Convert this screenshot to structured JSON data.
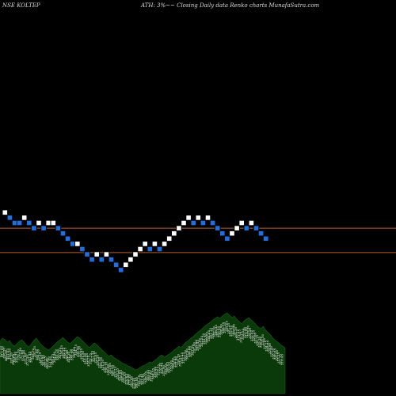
{
  "header": {
    "symbol": "NSE KOLTEP",
    "caption": "ATH: 3%~~ Closing Daily data Renko charts MunafaSutra.com"
  },
  "colors": {
    "background": "#000000",
    "up_brick": "#ffffff",
    "down_brick": "#1f6fe0",
    "level_line": "#b8612e",
    "volume_fill": "#0a3a0a"
  },
  "chart_data": {
    "type": "renko",
    "title": "",
    "xlabel": "",
    "ylabel": "",
    "grid": false,
    "ylim": [
      260,
      400
    ],
    "levels": [
      329,
      301
    ],
    "bricks": [
      {
        "close": 347,
        "dir": "up"
      },
      {
        "close": 341,
        "dir": "down"
      },
      {
        "close": 335,
        "dir": "down"
      },
      {
        "close": 335,
        "dir": "down"
      },
      {
        "close": 341,
        "dir": "up"
      },
      {
        "close": 335,
        "dir": "down"
      },
      {
        "close": 329,
        "dir": "down"
      },
      {
        "close": 335,
        "dir": "up"
      },
      {
        "close": 329,
        "dir": "down"
      },
      {
        "close": 335,
        "dir": "up"
      },
      {
        "close": 335,
        "dir": "up"
      },
      {
        "close": 329,
        "dir": "down"
      },
      {
        "close": 323,
        "dir": "down"
      },
      {
        "close": 317,
        "dir": "down"
      },
      {
        "close": 311,
        "dir": "down"
      },
      {
        "close": 311,
        "dir": "up"
      },
      {
        "close": 305,
        "dir": "down"
      },
      {
        "close": 299,
        "dir": "down"
      },
      {
        "close": 293,
        "dir": "down"
      },
      {
        "close": 299,
        "dir": "up"
      },
      {
        "close": 293,
        "dir": "down"
      },
      {
        "close": 299,
        "dir": "up"
      },
      {
        "close": 293,
        "dir": "down"
      },
      {
        "close": 287,
        "dir": "down"
      },
      {
        "close": 281,
        "dir": "down"
      },
      {
        "close": 287,
        "dir": "up"
      },
      {
        "close": 293,
        "dir": "up"
      },
      {
        "close": 299,
        "dir": "up"
      },
      {
        "close": 305,
        "dir": "up"
      },
      {
        "close": 311,
        "dir": "up"
      },
      {
        "close": 305,
        "dir": "down"
      },
      {
        "close": 311,
        "dir": "up"
      },
      {
        "close": 305,
        "dir": "down"
      },
      {
        "close": 311,
        "dir": "up"
      },
      {
        "close": 317,
        "dir": "up"
      },
      {
        "close": 323,
        "dir": "up"
      },
      {
        "close": 329,
        "dir": "up"
      },
      {
        "close": 335,
        "dir": "up"
      },
      {
        "close": 341,
        "dir": "up"
      },
      {
        "close": 335,
        "dir": "down"
      },
      {
        "close": 341,
        "dir": "up"
      },
      {
        "close": 335,
        "dir": "down"
      },
      {
        "close": 341,
        "dir": "up"
      },
      {
        "close": 335,
        "dir": "down"
      },
      {
        "close": 329,
        "dir": "down"
      },
      {
        "close": 323,
        "dir": "down"
      },
      {
        "close": 317,
        "dir": "down"
      },
      {
        "close": 323,
        "dir": "up"
      },
      {
        "close": 329,
        "dir": "up"
      },
      {
        "close": 335,
        "dir": "up"
      },
      {
        "close": 329,
        "dir": "down"
      },
      {
        "close": 335,
        "dir": "up"
      },
      {
        "close": 329,
        "dir": "down"
      },
      {
        "close": 323,
        "dir": "down"
      },
      {
        "close": 317,
        "dir": "down"
      }
    ],
    "volume_labels": [
      "421.55",
      "413.00",
      "398.50",
      "402.30",
      "401.65",
      "395.50",
      "391.20",
      "398.60",
      "388.40",
      "379.75",
      "376.20",
      "372.30",
      "371.60",
      "378.40",
      "372.40",
      "377.50",
      "381.45",
      "386.30",
      "383.70",
      "391.35",
      "397.80",
      "394.30",
      "387.35",
      "389.60",
      "381.40",
      "392.25",
      "381.40",
      "377.90",
      "374.80",
      "369.25",
      "364.40",
      "361.70",
      "366.90",
      "361.25",
      "356.45",
      "349.55",
      "358.35",
      "350.40",
      "344.30",
      "348.20",
      "351.90",
      "345.00",
      "344.75",
      "338.50",
      "332.10",
      "329.95",
      "321.50",
      "318.40",
      "323.45",
      "318.75",
      "322.15",
      "317.55",
      "325.10",
      "322.65",
      "328.20",
      "327.00",
      "329.10",
      "331.10",
      "338.15",
      "336.10",
      "336.40",
      "332.60",
      "338.25",
      "342.70",
      "353.75",
      "359.35",
      "357.60",
      "356.85",
      "366.30",
      "372.45",
      "370.65",
      "368.90",
      "375.30",
      "383.60",
      "379.20",
      "380.15",
      "392.00",
      "397.15",
      "389.10",
      "381.40",
      "374.55",
      "366.15",
      "365.55",
      "368.85",
      "357.80",
      "364.35",
      "359.00",
      "368.25",
      "373.35",
      "376.20",
      "359.75",
      "351.90",
      "345.60",
      "340.05",
      "353.25",
      "355.80",
      "344.60",
      "338.45",
      "331.90",
      "326.70",
      "321.25",
      "318.35",
      "313.15",
      "309.30",
      "307.40",
      "298.80",
      "302.05",
      "301.60",
      "297.40",
      "289.60",
      "295.45",
      "290.00",
      "282.55",
      "281.10",
      "285.90",
      "289.05",
      "284.65",
      "281.15",
      "286.35",
      "282.10",
      "289.55",
      "285.05",
      "290.60",
      "286.40",
      "288.75",
      "295.20",
      "289.05",
      "297.35",
      "293.65",
      "297.20",
      "306.40",
      "304.10",
      "310.25",
      "314.85",
      "310.15",
      "318.55",
      "323.40",
      "319.80",
      "329.30",
      "326.20",
      "332.95",
      "336.35",
      "335.60",
      "338.15",
      "339.20",
      "336.60",
      "335.50",
      "333.00",
      "334.25",
      "328.05",
      "329.90",
      "322.40",
      "326.10",
      "320.05",
      "323.80",
      "315.35",
      "321.75",
      "318.45"
    ],
    "volume_profile": [
      44,
      48,
      46,
      43,
      45,
      40,
      38,
      41,
      44,
      46,
      43,
      39,
      37,
      41,
      45,
      48,
      44,
      40,
      37,
      35,
      33,
      35,
      38,
      41,
      44,
      46,
      49,
      46,
      43,
      41,
      44,
      47,
      50,
      48,
      45,
      42,
      39,
      36,
      39,
      42,
      40,
      37,
      34,
      31,
      28,
      25,
      27,
      24,
      22,
      20,
      18,
      16,
      15,
      13,
      12,
      10,
      8,
      9,
      11,
      13,
      14,
      16,
      18,
      17,
      20,
      22,
      25,
      27,
      24,
      26,
      28,
      30,
      33,
      35,
      38,
      36,
      40,
      43,
      45,
      48,
      50,
      53,
      56,
      58,
      61,
      64,
      66,
      68,
      71,
      73,
      75,
      73,
      76,
      78,
      80,
      77,
      74,
      76,
      72,
      69,
      66,
      70,
      72,
      74,
      71,
      68,
      65,
      62,
      60,
      63,
      58,
      55,
      52,
      48,
      45,
      43,
      40,
      38,
      36
    ]
  }
}
